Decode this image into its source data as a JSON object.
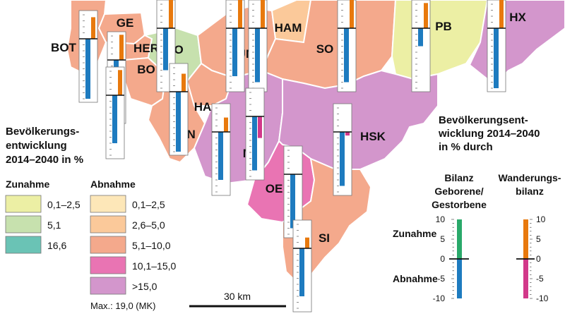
{
  "districts": [
    {
      "code": "BOT",
      "category": "dec-5.1-10.0",
      "birth_balance": -10,
      "migration_balance": 6
    },
    {
      "code": "GE",
      "category": "dec-5.1-10.0",
      "birth_balance": -10,
      "migration_balance": 7
    },
    {
      "code": "HER",
      "category": "dec-5.1-10.0",
      "birth_balance": null,
      "migration_balance": null
    },
    {
      "code": "BO",
      "category": "dec-5.1-10.0",
      "birth_balance": -8,
      "migration_balance": 7
    },
    {
      "code": "DO",
      "category": "inc-5.1",
      "birth_balance": -7,
      "migration_balance": 8
    },
    {
      "code": "UN",
      "category": "dec-5.1-10.0",
      "birth_balance": -8,
      "migration_balance": 8
    },
    {
      "code": "HAM",
      "category": "dec-2.6-5.0",
      "birth_balance": -9,
      "migration_balance": 9
    },
    {
      "code": "SO",
      "category": "dec-5.1-10.0",
      "birth_balance": -9,
      "migration_balance": 8
    },
    {
      "code": "PB",
      "category": "inc-0.1-2.5",
      "birth_balance": -3,
      "migration_balance": 7
    },
    {
      "code": "HX",
      "category": "dec-gt-15.0",
      "birth_balance": -10,
      "migration_balance": 8
    },
    {
      "code": "HA",
      "category": "dec-5.1-10.0",
      "birth_balance": -8,
      "migration_balance": 4
    },
    {
      "code": "EN",
      "category": "dec-5.1-10.0",
      "birth_balance": -10,
      "migration_balance": 5
    },
    {
      "code": "MK",
      "category": "dec-gt-15.0",
      "birth_balance": -9,
      "migration_balance": -6
    },
    {
      "code": "HSK",
      "category": "dec-gt-15.0",
      "birth_balance": -9,
      "migration_balance": -1
    },
    {
      "code": "OE",
      "category": "dec-10.1-15.0",
      "birth_balance": -9,
      "migration_balance": 0
    },
    {
      "code": "SI",
      "category": "dec-5.1-10.0",
      "birth_balance": -8,
      "migration_balance": 3
    }
  ],
  "legend_main": {
    "title_lines": [
      "Bevölkerungs-",
      "entwicklung",
      "2014–2040 in %"
    ],
    "increase_heading": "Zunahme",
    "decrease_heading": "Abnahme",
    "increase_classes": [
      {
        "label": "0,1–2,5",
        "color": "#ecefa4"
      },
      {
        "label": "5,1",
        "color": "#c7e1ae"
      },
      {
        "label": "16,6",
        "color": "#6ac3b5"
      }
    ],
    "decrease_classes": [
      {
        "label": "0,1–2,5",
        "color": "#fde7b8"
      },
      {
        "label": "2,6–5,0",
        "color": "#fbc99a"
      },
      {
        "label": "5,1–10,0",
        "color": "#f4a98c"
      },
      {
        "label": "10,1–15,0",
        "color": "#e974b3"
      },
      {
        "label": ">15,0",
        "color": "#d396cc"
      }
    ],
    "max_note": "Max.: 19,0 (MK)"
  },
  "legend_bars": {
    "title_lines": [
      "Bevölkerungsent-",
      "wicklung 2014–2040",
      "in % durch"
    ],
    "col1_lines": [
      "Bilanz",
      "Geborene/",
      "Gestorbene"
    ],
    "col2_lines": [
      "Wanderungs-",
      "bilanz"
    ],
    "increase_label": "Zunahme",
    "decrease_label": "Abnahme",
    "ticks_left": [
      "10",
      "5",
      "0",
      "-5",
      "-10"
    ],
    "ticks_right": [
      "10",
      "5",
      "0",
      "-5",
      "-10"
    ],
    "birth_increase_color": "#2aa96a",
    "birth_decrease_color": "#1e7bbf",
    "migration_increase_color": "#e8790d",
    "migration_decrease_color": "#d2388a"
  },
  "scale_bar": {
    "label": "30 km"
  }
}
